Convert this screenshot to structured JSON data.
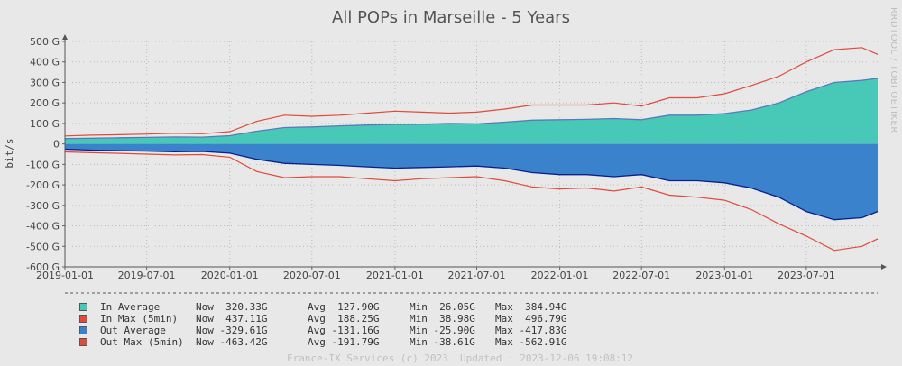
{
  "chart_data": {
    "type": "area",
    "title": "All POPs in Marseille - 5 Years",
    "ylabel": "bit/s",
    "ylim": [
      -600,
      500
    ],
    "yunit": "G",
    "yticks": [
      "500 G",
      "400 G",
      "300 G",
      "200 G",
      "100 G",
      "0",
      "-100 G",
      "-200 G",
      "-300 G",
      "-400 G",
      "-500 G",
      "-600 G"
    ],
    "ytick_values": [
      500,
      400,
      300,
      200,
      100,
      0,
      -100,
      -200,
      -300,
      -400,
      -500,
      -600
    ],
    "xlim": [
      "2019-01-01",
      "2023-12-06"
    ],
    "xticks": [
      "2019-01-01",
      "2019-07-01",
      "2020-01-01",
      "2020-07-01",
      "2021-01-01",
      "2021-07-01",
      "2022-01-01",
      "2022-07-01",
      "2023-01-01",
      "2023-07-01"
    ],
    "grid": true,
    "x": [
      "2019-01-01",
      "2019-03-01",
      "2019-05-01",
      "2019-07-01",
      "2019-09-01",
      "2019-11-01",
      "2020-01-01",
      "2020-03-01",
      "2020-05-01",
      "2020-07-01",
      "2020-09-01",
      "2020-11-01",
      "2021-01-01",
      "2021-03-01",
      "2021-05-01",
      "2021-07-01",
      "2021-09-01",
      "2021-11-01",
      "2022-01-01",
      "2022-03-01",
      "2022-05-01",
      "2022-07-01",
      "2022-09-01",
      "2022-11-01",
      "2023-01-01",
      "2023-03-01",
      "2023-05-01",
      "2023-07-01",
      "2023-09-01",
      "2023-11-01",
      "2023-12-06"
    ],
    "series": [
      {
        "name": "In Average",
        "color": "#48c9b8",
        "style": "area",
        "values": [
          26,
          28,
          30,
          32,
          34,
          33,
          40,
          62,
          80,
          83,
          88,
          92,
          95,
          96,
          100,
          98,
          106,
          116,
          118,
          120,
          124,
          118,
          140,
          140,
          148,
          165,
          200,
          255,
          300,
          310,
          320
        ]
      },
      {
        "name": "In Max (5min)",
        "color": "#e04a3a",
        "style": "line",
        "values": [
          39,
          43,
          45,
          48,
          52,
          50,
          60,
          110,
          140,
          135,
          140,
          150,
          160,
          155,
          150,
          155,
          170,
          190,
          190,
          190,
          200,
          185,
          225,
          225,
          245,
          285,
          330,
          400,
          460,
          470,
          437
        ]
      },
      {
        "name": "Out Average",
        "color": "#3a82cc",
        "style": "area",
        "values": [
          -26,
          -30,
          -33,
          -35,
          -38,
          -37,
          -45,
          -75,
          -95,
          -100,
          -105,
          -112,
          -118,
          -115,
          -112,
          -108,
          -118,
          -140,
          -150,
          -150,
          -160,
          -150,
          -180,
          -180,
          -190,
          -215,
          -260,
          -330,
          -370,
          -360,
          -330
        ]
      },
      {
        "name": "Out Max (5min)",
        "color": "#e04a3a",
        "style": "line",
        "values": [
          -39,
          -43,
          -46,
          -50,
          -54,
          -52,
          -65,
          -135,
          -165,
          -160,
          -160,
          -170,
          -180,
          -170,
          -165,
          -160,
          -180,
          -210,
          -220,
          -215,
          -230,
          -210,
          -250,
          -260,
          -275,
          -320,
          -390,
          -450,
          -520,
          -500,
          -463
        ]
      }
    ]
  },
  "legend": [
    {
      "name": "In Average",
      "color": "#48c9b8",
      "now": "320.33G",
      "avg": "127.90G",
      "min": "26.05G",
      "max": "384.94G"
    },
    {
      "name": "In Max (5min)",
      "color": "#e04a3a",
      "now": "437.11G",
      "avg": "188.25G",
      "min": "38.98G",
      "max": "496.79G"
    },
    {
      "name": "Out Average",
      "color": "#3a82cc",
      "now": "-329.61G",
      "avg": "-131.16G",
      "min": "-25.90G",
      "max": "-417.83G"
    },
    {
      "name": "Out Max (5min)",
      "color": "#e04a3a",
      "now": "-463.42G",
      "avg": "-191.79G",
      "min": "-38.61G",
      "max": "-562.91G"
    }
  ],
  "legend_labels": {
    "now": "Now",
    "avg": "Avg",
    "min": "Min",
    "max": "Max"
  },
  "watermark": "RRDTOOL / TOBI OETIKER",
  "footer": {
    "credit": "France-IX Services (c) 2023",
    "updated": "Updated : 2023-12-06 19:08:12"
  }
}
